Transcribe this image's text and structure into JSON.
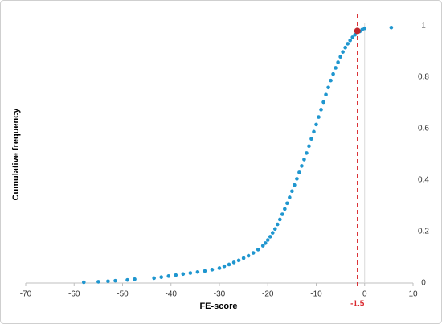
{
  "chart_data": {
    "type": "scatter",
    "x_label": "FE-score",
    "y_label": "Cumulative frequency",
    "color": "#1f96cf",
    "x": [
      -58,
      -55,
      -53,
      -51.5,
      -49,
      -47.5,
      -43.5,
      -42,
      -40.5,
      -39,
      -37.5,
      -36,
      -34.5,
      -33,
      -31.5,
      -30,
      -29,
      -28,
      -27,
      -26,
      -25,
      -24,
      -23,
      -22,
      -21,
      -20.5,
      -20,
      -19.5,
      -19,
      -18.5,
      -18,
      -17.5,
      -17,
      -16.5,
      -16,
      -15.5,
      -15,
      -14.5,
      -14,
      -13.5,
      -13,
      -12.5,
      -12,
      -11.5,
      -11,
      -10.5,
      -10,
      -9.5,
      -9,
      -8.5,
      -8,
      -7.5,
      -7,
      -6.5,
      -6,
      -5.5,
      -5,
      -4.5,
      -4,
      -3.5,
      -3,
      -2.5,
      -2,
      -1,
      -0.5,
      0,
      5.5
    ],
    "values": [
      0.003,
      0.005,
      0.007,
      0.009,
      0.012,
      0.015,
      0.019,
      0.023,
      0.027,
      0.031,
      0.035,
      0.039,
      0.043,
      0.047,
      0.052,
      0.058,
      0.065,
      0.072,
      0.08,
      0.088,
      0.097,
      0.106,
      0.117,
      0.13,
      0.145,
      0.155,
      0.167,
      0.18,
      0.195,
      0.21,
      0.228,
      0.247,
      0.267,
      0.288,
      0.31,
      0.333,
      0.357,
      0.381,
      0.405,
      0.43,
      0.455,
      0.48,
      0.505,
      0.532,
      0.56,
      0.588,
      0.616,
      0.645,
      0.674,
      0.703,
      0.732,
      0.76,
      0.787,
      0.812,
      0.836,
      0.858,
      0.879,
      0.898,
      0.915,
      0.93,
      0.943,
      0.955,
      0.965,
      0.978,
      0.985,
      0.99,
      0.993
    ],
    "xlim": [
      -70,
      10
    ],
    "xticks": [
      -70,
      -60,
      -50,
      -40,
      -30,
      -20,
      -10,
      0,
      10
    ],
    "ylim": [
      0,
      1
    ],
    "yticks": [
      0,
      0.2,
      0.4,
      0.6,
      0.8,
      1
    ],
    "threshold": -1.5,
    "threshold_color": "#d9262c",
    "highlight": {
      "x": -1.5,
      "y": 0.98,
      "color": "#c0272d"
    }
  }
}
